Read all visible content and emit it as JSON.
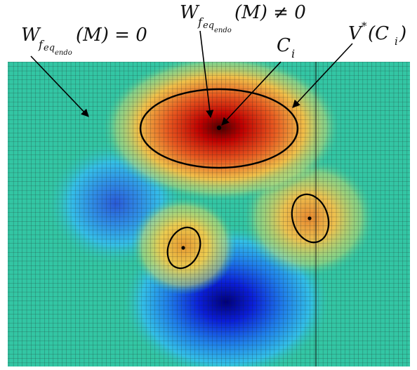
{
  "labels": {
    "w_zero": {
      "base": "W",
      "sub_f": "f",
      "sub_eq": "eq",
      "sub_endo": "endo",
      "rest": "(M) = 0"
    },
    "w_nonzero": {
      "base": "W",
      "sub_f": "f",
      "sub_eq": "eq",
      "sub_endo": "endo",
      "rest": "(M) ≠ 0"
    },
    "ci": {
      "base": "C",
      "sub": "i"
    },
    "vstar": {
      "base": "V",
      "sup": "*",
      "rest_open": "(C",
      "sub": "i",
      "rest_close": ")"
    }
  },
  "colors": {
    "background_field": "#33c6a4",
    "grid_line": "#1a1a1a",
    "outline": "#000000",
    "peak_red": "#8b0000",
    "peak_orange": "#e8a040",
    "trough_blue": "#1a2fd0",
    "trough_cyan": "#2aa8e8"
  }
}
